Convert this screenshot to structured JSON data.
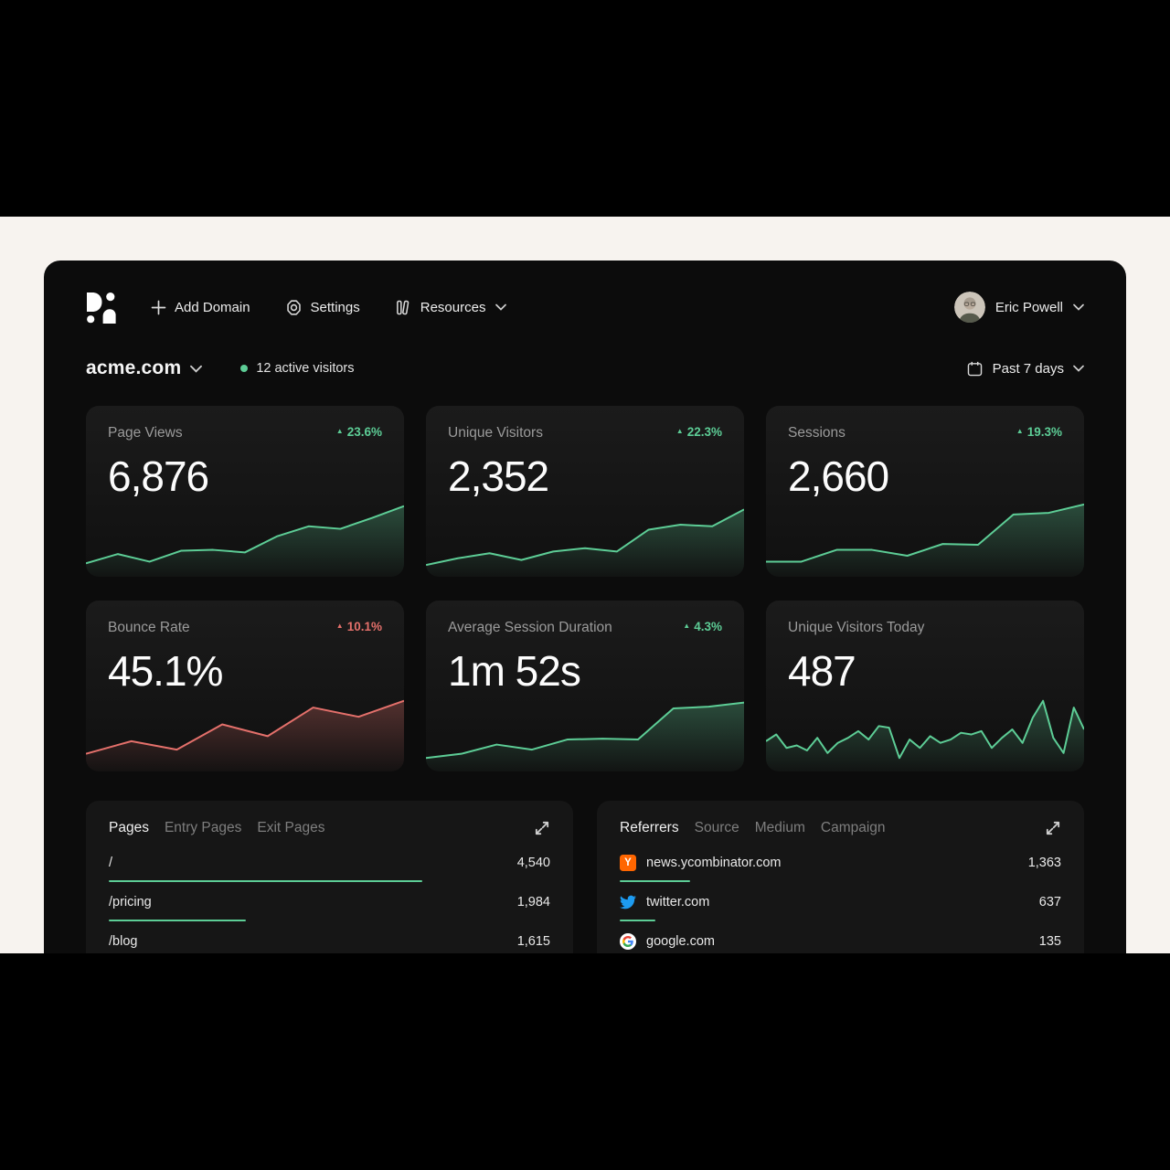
{
  "colors": {
    "green": "#5dcd96",
    "red": "#e4706b",
    "bg_page": "#f7f3ef",
    "bg_app": "#0c0c0c"
  },
  "nav": {
    "add_domain_label": "Add Domain",
    "settings_label": "Settings",
    "resources_label": "Resources",
    "user": {
      "name": "Eric Powell"
    }
  },
  "toolbar": {
    "domain": "acme.com",
    "active_visitors": "12 active visitors",
    "date_range": "Past 7 days"
  },
  "metrics": [
    {
      "title": "Page Views",
      "value": "6,876",
      "delta": "23.6%",
      "trend": "up",
      "tone": "green",
      "spark": 0
    },
    {
      "title": "Unique Visitors",
      "value": "2,352",
      "delta": "22.3%",
      "trend": "up",
      "tone": "green",
      "spark": 1
    },
    {
      "title": "Sessions",
      "value": "2,660",
      "delta": "19.3%",
      "trend": "up",
      "tone": "green",
      "spark": 2
    },
    {
      "title": "Bounce Rate",
      "value": "45.1%",
      "delta": "10.1%",
      "trend": "up",
      "tone": "red",
      "spark": 3
    },
    {
      "title": "Average Session Duration",
      "value": "1m 52s",
      "delta": "4.3%",
      "trend": "up",
      "tone": "green",
      "spark": 4
    },
    {
      "title": "Unique Visitors Today",
      "value": "487",
      "delta": null,
      "trend": null,
      "tone": "green",
      "spark": 5
    }
  ],
  "chart_data": [
    {
      "type": "area",
      "name": "page-views-sparkline",
      "color": "#5dcd96",
      "values": [
        16,
        27,
        18,
        31,
        32,
        29,
        48,
        60,
        57,
        70,
        84
      ]
    },
    {
      "type": "area",
      "name": "unique-visitors-sparkline",
      "color": "#5dcd96",
      "values": [
        14,
        22,
        28,
        20,
        30,
        34,
        30,
        56,
        62,
        60,
        80
      ]
    },
    {
      "type": "area",
      "name": "sessions-sparkline",
      "color": "#5dcd96",
      "values": [
        18,
        18,
        32,
        32,
        25,
        39,
        38,
        74,
        76,
        86
      ]
    },
    {
      "type": "area",
      "name": "bounce-rate-sparkline",
      "color": "#e4706b",
      "values": [
        21,
        36,
        26,
        56,
        42,
        76,
        65,
        84
      ]
    },
    {
      "type": "area",
      "name": "avg-session-duration-sparkline",
      "color": "#5dcd96",
      "values": [
        16,
        21,
        32,
        26,
        38,
        39,
        38,
        75,
        77,
        82
      ]
    },
    {
      "type": "area",
      "name": "unique-visitors-today-sparkline",
      "color": "#5dcd96",
      "values": [
        36,
        44,
        28,
        31,
        25,
        40,
        22,
        34,
        40,
        48,
        38,
        54,
        52,
        16,
        38,
        28,
        42,
        34,
        38,
        46,
        44,
        48,
        28,
        40,
        50,
        34,
        64,
        84,
        40,
        22,
        76,
        50
      ]
    }
  ],
  "pages_panel": {
    "tabs": [
      "Pages",
      "Entry Pages",
      "Exit Pages"
    ],
    "active_tab": "Pages",
    "rows": [
      {
        "label": "/",
        "value": "4,540",
        "bar_pct": 71
      },
      {
        "label": "/pricing",
        "value": "1,984",
        "bar_pct": 31
      },
      {
        "label": "/blog",
        "value": "1,615",
        "bar_pct": 24
      }
    ]
  },
  "referrers_panel": {
    "tabs": [
      "Referrers",
      "Source",
      "Medium",
      "Campaign"
    ],
    "active_tab": "Referrers",
    "rows": [
      {
        "label": "news.ycombinator.com",
        "icon": "ycombinator-icon",
        "value": "1,363",
        "bar_pct": 16
      },
      {
        "label": "twitter.com",
        "icon": "twitter-icon",
        "value": "637",
        "bar_pct": 8
      },
      {
        "label": "google.com",
        "icon": "google-icon",
        "value": "135",
        "bar_pct": 3
      }
    ]
  }
}
